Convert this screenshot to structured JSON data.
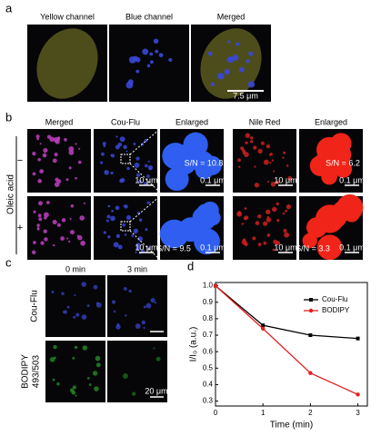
{
  "panel_labels": [
    "a",
    "b",
    "c",
    "d"
  ],
  "panel_a": {
    "headers": [
      "Yellow channel",
      "Blue channel",
      "Merged"
    ],
    "scale_bar": "7.5 μm"
  },
  "panel_b": {
    "headers": [
      "Merged",
      "Cou-Flu",
      "Enlarged",
      "Nile Red",
      "Enlarged"
    ],
    "row_title": "Oleic acid",
    "row_labels": [
      "−",
      "+"
    ],
    "scale_bars": [
      "10 μm",
      "0.1 μm"
    ],
    "sn_labels": [
      "S/N = 10.8",
      "S/N = 6.2",
      "S/N = 9.5",
      "S/N = 3.3"
    ]
  },
  "panel_c": {
    "headers": [
      "0 min",
      "3 min"
    ],
    "row_labels": [
      "Cou-Flu",
      [
        "BODIPY",
        "493/503"
      ]
    ],
    "scale_bar": "20 μm"
  },
  "chart_data": {
    "type": "line",
    "xlabel": "Time (min)",
    "ylabel": "I/I₀ (a.u.)",
    "x": [
      0,
      1,
      2,
      3
    ],
    "series": [
      {
        "name": "Cou-Flu",
        "color": "#000000",
        "values": [
          1.0,
          0.76,
          0.7,
          0.68
        ]
      },
      {
        "name": "BODIPY",
        "color": "#e02020",
        "values": [
          1.0,
          0.74,
          0.47,
          0.34
        ]
      }
    ],
    "xlim": [
      0,
      3.2
    ],
    "ylim": [
      0.27,
      1.02
    ],
    "xticks": [
      0,
      1,
      2,
      3
    ],
    "yticks": [
      0.3,
      0.4,
      0.5,
      0.6,
      0.7,
      0.8,
      0.9,
      {
        "value": 1,
        "label": "1.0"
      }
    ],
    "legend": "upper right"
  }
}
